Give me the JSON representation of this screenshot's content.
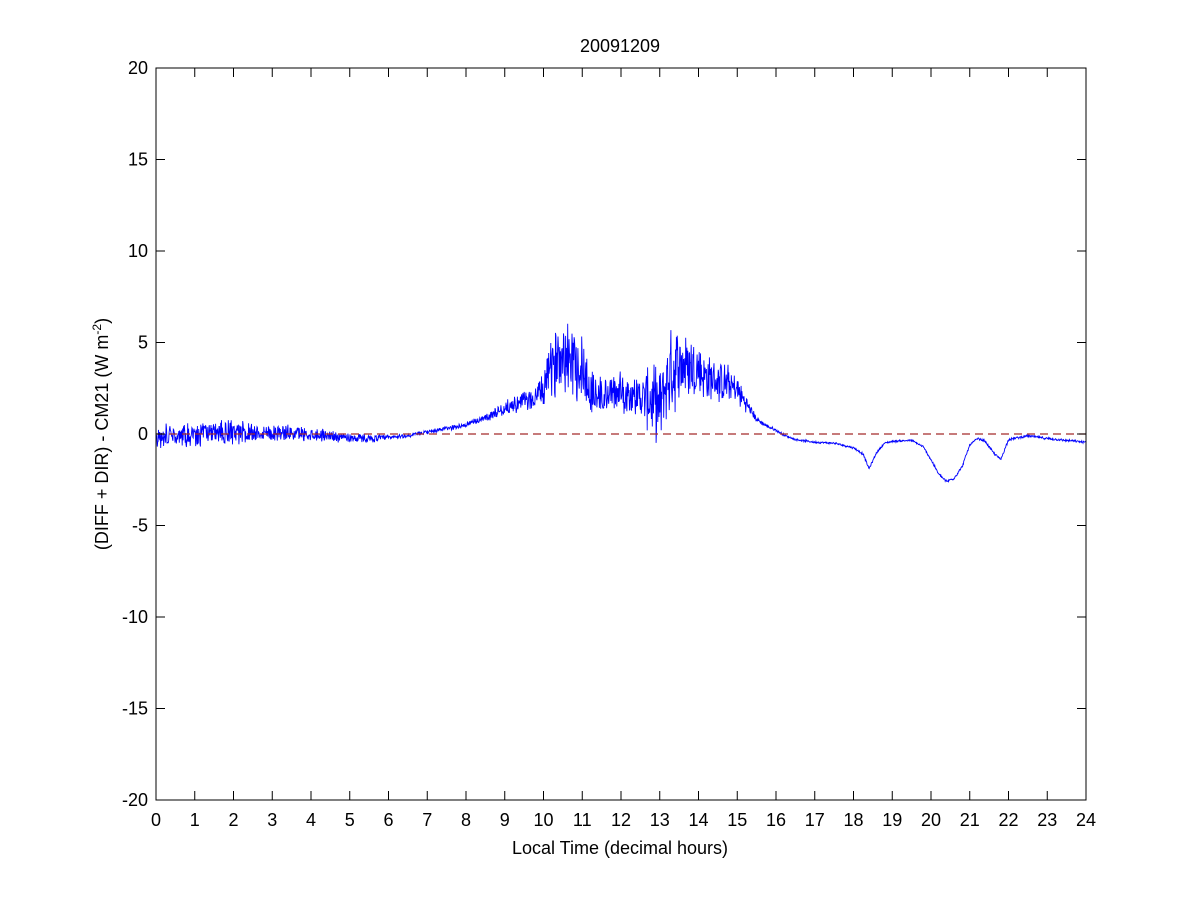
{
  "chart_data": {
    "type": "line",
    "title": "20091209",
    "xlabel": "Local Time (decimal hours)",
    "ylabel": {
      "main": "(DIFF + DIR) - CM21 (W m",
      "superscript": "-2",
      "close": ")"
    },
    "xlim": [
      0,
      24
    ],
    "ylim": [
      -20,
      20
    ],
    "xticks": [
      0,
      1,
      2,
      3,
      4,
      5,
      6,
      7,
      8,
      9,
      10,
      11,
      12,
      13,
      14,
      15,
      16,
      17,
      18,
      19,
      20,
      21,
      22,
      23,
      24
    ],
    "yticks": [
      -20,
      -15,
      -10,
      -5,
      0,
      5,
      10,
      15,
      20
    ],
    "grid": false,
    "series": [
      {
        "color": "#0000ff",
        "line_style": "solid",
        "x": [
          0,
          0.5,
          1,
          1.5,
          2,
          2.5,
          3,
          3.5,
          4,
          4.5,
          5,
          5.5,
          6,
          6.5,
          7,
          7.5,
          8,
          8.5,
          9,
          9.25,
          9.5,
          9.75,
          10,
          10.25,
          10.5,
          10.75,
          11,
          11.25,
          11.5,
          11.75,
          12,
          12.25,
          12.5,
          12.75,
          13,
          13.25,
          13.5,
          13.75,
          14,
          14.25,
          14.5,
          14.75,
          15,
          15.25,
          15.5,
          15.75,
          16,
          16.25,
          16.5,
          17,
          17.5,
          18,
          18.25,
          18.4,
          18.6,
          18.8,
          19,
          19.5,
          19.8,
          20,
          20.2,
          20.4,
          20.6,
          20.8,
          21,
          21.2,
          21.4,
          21.6,
          21.8,
          22,
          22.5,
          23,
          23.5,
          24
        ],
        "y": [
          -0.2,
          0,
          -0.1,
          0.1,
          0,
          0.1,
          0.1,
          0.05,
          0,
          -0.1,
          -0.2,
          -0.25,
          -0.2,
          -0.1,
          0.1,
          0.3,
          0.5,
          0.9,
          1.4,
          1.6,
          1.8,
          1.9,
          2.5,
          3.8,
          4.6,
          4.2,
          3.6,
          2.2,
          2.0,
          2.2,
          2.3,
          2.2,
          2.0,
          1.9,
          1.5,
          3.3,
          3.8,
          3.7,
          3.5,
          3.0,
          2.9,
          2.7,
          2.4,
          1.6,
          0.8,
          0.45,
          0.2,
          -0.1,
          -0.3,
          -0.45,
          -0.5,
          -0.75,
          -1.1,
          -1.9,
          -1.0,
          -0.5,
          -0.4,
          -0.35,
          -0.7,
          -1.4,
          -2.2,
          -2.6,
          -2.4,
          -1.8,
          -0.6,
          -0.25,
          -0.4,
          -1.0,
          -1.4,
          -0.3,
          -0.1,
          -0.25,
          -0.35,
          -0.45
        ],
        "noise_amplitude": [
          0.6,
          0.6,
          0.6,
          0.6,
          0.7,
          0.5,
          0.45,
          0.4,
          0.35,
          0.3,
          0.25,
          0.2,
          0.15,
          0.1,
          0.1,
          0.12,
          0.15,
          0.2,
          0.35,
          0.45,
          0.5,
          0.6,
          0.9,
          1.6,
          2.0,
          2.1,
          2.0,
          1.4,
          1.1,
          1.0,
          1.0,
          1.0,
          1.1,
          1.8,
          1.9,
          2.2,
          2.1,
          1.8,
          1.5,
          1.2,
          1.1,
          1.0,
          0.8,
          0.4,
          0.15,
          0.1,
          0.08,
          0.06,
          0.05,
          0.05,
          0.05,
          0.06,
          0.06,
          0.06,
          0.06,
          0.05,
          0.05,
          0.05,
          0.06,
          0.07,
          0.08,
          0.08,
          0.08,
          0.07,
          0.06,
          0.06,
          0.06,
          0.07,
          0.07,
          0.06,
          0.06,
          0.06,
          0.06,
          0.06
        ]
      },
      {
        "color": "#a52a2a",
        "line_style": "dashed",
        "x": [
          0,
          24
        ],
        "y": [
          0,
          0
        ]
      }
    ]
  }
}
